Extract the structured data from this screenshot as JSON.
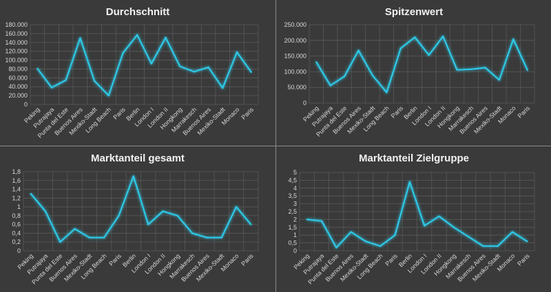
{
  "colors": {
    "background": "#3a3a3a",
    "grid": "#5a5a5a",
    "line": "#2ec8e6",
    "text": "#d9d9d9"
  },
  "chart_data": [
    {
      "type": "line",
      "title": "Durchschnitt",
      "categories": [
        "Peking",
        "Putrajaya",
        "Punta del Este",
        "Buenos Aires",
        "Mexiko-Stadt",
        "Long Beach",
        "Paris",
        "Berlin",
        "London I",
        "London II",
        "Hongkong",
        "Marrakesch",
        "Buenos Aires",
        "Mexiko-Stadt",
        "Monaco",
        "Paris"
      ],
      "values": [
        81000,
        38000,
        55000,
        150000,
        53000,
        20000,
        116000,
        157000,
        92000,
        151000,
        86000,
        74000,
        84000,
        37000,
        118000,
        73000
      ],
      "ylim": [
        0,
        180000
      ],
      "yticks": [
        "0",
        "20.000",
        "40.000",
        "60.000",
        "80.000",
        "100.000",
        "120.000",
        "140.000",
        "160.000",
        "180.000"
      ],
      "grid": true,
      "legend": "none"
    },
    {
      "type": "line",
      "title": "Spitzenwert",
      "categories": [
        "Peking",
        "Putrajaya",
        "Punta del Este",
        "Buenos Aires",
        "Mexiko-Stadt",
        "Long Beach",
        "Paris",
        "Berlin",
        "London I",
        "London II",
        "Hongkong",
        "Marrakesch",
        "Buenos Aires",
        "Mexiko-Stadt",
        "Monaco",
        "Paris"
      ],
      "values": [
        131000,
        56000,
        85000,
        168000,
        88000,
        34000,
        175000,
        210000,
        153000,
        213000,
        106000,
        108000,
        113000,
        74000,
        204000,
        105000
      ],
      "ylim": [
        0,
        250000
      ],
      "yticks": [
        "0",
        "50.000",
        "100.000",
        "150.000",
        "200.000",
        "250.000"
      ],
      "grid": true,
      "legend": "none"
    },
    {
      "type": "line",
      "title": "Marktanteil gesamt",
      "categories": [
        "Peking",
        "Putrajaya",
        "Punta del Este",
        "Buenos Aires",
        "Mexiko-Stadt",
        "Long Beach",
        "Paris",
        "Berlin",
        "London I",
        "London II",
        "Hongkong",
        "Marrakesch",
        "Buenos Aires",
        "Mexiko-Stadt",
        "Monaco",
        "Paris"
      ],
      "values": [
        1.3,
        0.9,
        0.2,
        0.5,
        0.3,
        0.3,
        0.8,
        1.7,
        0.6,
        0.9,
        0.8,
        0.4,
        0.3,
        0.3,
        1.0,
        0.6
      ],
      "ylim": [
        0,
        1.8
      ],
      "yticks": [
        "0",
        "0,2",
        "0,4",
        "0,6",
        "0,8",
        "1",
        "1,2",
        "1,4",
        "1,6",
        "1,8"
      ],
      "grid": true,
      "legend": "none"
    },
    {
      "type": "line",
      "title": "Marktanteil Zielgruppe",
      "categories": [
        "Peking",
        "Putrajaya",
        "Punta del Este",
        "Buenos Aires",
        "Mexiko-Stadt",
        "Long Beach",
        "Paris",
        "Berlin",
        "London I",
        "London II",
        "Hongkong",
        "Marrakesch",
        "Buenos Aires",
        "Mexiko-Stadt",
        "Monaco",
        "Paris"
      ],
      "values": [
        2.0,
        1.9,
        0.2,
        1.2,
        0.6,
        0.3,
        1.0,
        4.4,
        1.6,
        2.2,
        1.5,
        0.9,
        0.3,
        0.3,
        1.2,
        0.6
      ],
      "ylim": [
        0,
        5
      ],
      "yticks": [
        "0",
        "0,5",
        "1",
        "1,5",
        "2",
        "2,5",
        "3",
        "3,5",
        "4",
        "4,5",
        "5"
      ],
      "grid": true,
      "legend": "none"
    }
  ]
}
